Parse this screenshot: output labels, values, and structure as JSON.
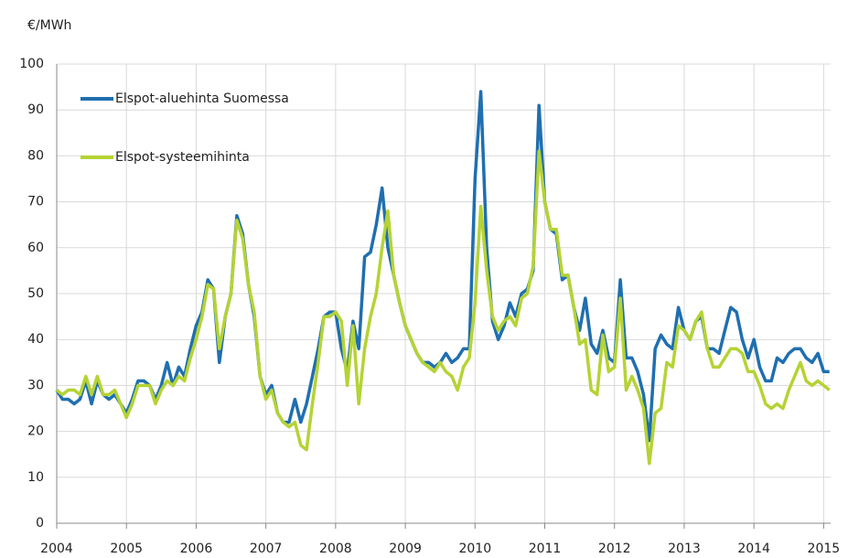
{
  "chart_data": {
    "type": "line",
    "y_label": "€/MWh",
    "x": [
      2004,
      2004.083,
      2004.167,
      2004.25,
      2004.333,
      2004.417,
      2004.5,
      2004.583,
      2004.667,
      2004.75,
      2004.833,
      2004.917,
      2005,
      2005.083,
      2005.167,
      2005.25,
      2005.333,
      2005.417,
      2005.5,
      2005.583,
      2005.667,
      2005.75,
      2005.833,
      2005.917,
      2006,
      2006.083,
      2006.167,
      2006.25,
      2006.333,
      2006.417,
      2006.5,
      2006.583,
      2006.667,
      2006.75,
      2006.833,
      2006.917,
      2007,
      2007.083,
      2007.167,
      2007.25,
      2007.333,
      2007.417,
      2007.5,
      2007.583,
      2007.667,
      2007.75,
      2007.833,
      2007.917,
      2008,
      2008.083,
      2008.167,
      2008.25,
      2008.333,
      2008.417,
      2008.5,
      2008.583,
      2008.667,
      2008.75,
      2008.833,
      2008.917,
      2009,
      2009.083,
      2009.167,
      2009.25,
      2009.333,
      2009.417,
      2009.5,
      2009.583,
      2009.667,
      2009.75,
      2009.833,
      2009.917,
      2010,
      2010.083,
      2010.167,
      2010.25,
      2010.333,
      2010.417,
      2010.5,
      2010.583,
      2010.667,
      2010.75,
      2010.833,
      2010.917,
      2011,
      2011.083,
      2011.167,
      2011.25,
      2011.333,
      2011.417,
      2011.5,
      2011.583,
      2011.667,
      2011.75,
      2011.833,
      2011.917,
      2012,
      2012.083,
      2012.167,
      2012.25,
      2012.333,
      2012.417,
      2012.5,
      2012.583,
      2012.667,
      2012.75,
      2012.833,
      2012.917,
      2013,
      2013.083,
      2013.167,
      2013.25,
      2013.333,
      2013.417,
      2013.5,
      2013.583,
      2013.667,
      2013.75,
      2013.833,
      2013.917,
      2014,
      2014.083,
      2014.167,
      2014.25,
      2014.333,
      2014.417,
      2014.5,
      2014.583,
      2014.667,
      2014.75,
      2014.833,
      2014.917,
      2015,
      2015.083
    ],
    "series": [
      {
        "name": "Elspot-aluehinta Suomessa",
        "color": "#1f6fb0",
        "values": [
          29,
          27,
          27,
          26,
          27,
          31,
          26,
          31,
          28,
          27,
          28,
          26,
          24,
          27,
          31,
          31,
          30,
          27,
          30,
          35,
          30,
          34,
          32,
          38,
          43,
          46,
          53,
          51,
          35,
          45,
          50,
          67,
          63,
          52,
          45,
          32,
          28,
          30,
          24,
          22,
          22,
          27,
          22,
          26,
          32,
          38,
          45,
          46,
          46,
          38,
          33,
          44,
          38,
          58,
          59,
          65,
          73,
          60,
          54,
          48,
          43,
          40,
          37,
          35,
          35,
          34,
          35,
          37,
          35,
          36,
          38,
          38,
          75,
          94,
          60,
          44,
          40,
          43,
          48,
          45,
          50,
          51,
          55,
          91,
          70,
          64,
          63,
          53,
          54,
          47,
          42,
          49,
          39,
          37,
          42,
          36,
          35,
          53,
          36,
          36,
          33,
          28,
          18,
          38,
          41,
          39,
          38,
          47,
          42,
          40,
          44,
          45,
          38,
          38,
          37,
          42,
          47,
          46,
          40,
          36,
          40,
          34,
          31,
          31,
          36,
          35,
          37,
          38,
          38,
          36,
          35,
          37,
          33,
          33
        ]
      },
      {
        "name": "Elspot-systeemihinta",
        "color": "#b5d334",
        "values": [
          29,
          28,
          29,
          29,
          28,
          32,
          28,
          32,
          28,
          28,
          29,
          26,
          23,
          26,
          30,
          30,
          30,
          26,
          29,
          31,
          30,
          32,
          31,
          36,
          40,
          45,
          52,
          51,
          38,
          45,
          50,
          66,
          62,
          52,
          46,
          32,
          27,
          29,
          24,
          22,
          21,
          22,
          17,
          16,
          26,
          35,
          45,
          45,
          46,
          44,
          30,
          43,
          26,
          38,
          45,
          50,
          60,
          68,
          54,
          48,
          43,
          40,
          37,
          35,
          34,
          33,
          35,
          33,
          32,
          29,
          34,
          36,
          48,
          69,
          55,
          45,
          42,
          44,
          45,
          43,
          49,
          50,
          56,
          81,
          70,
          64,
          64,
          54,
          54,
          47,
          39,
          40,
          29,
          28,
          41,
          33,
          34,
          49,
          29,
          32,
          29,
          25,
          13,
          24,
          25,
          35,
          34,
          43,
          42,
          40,
          44,
          46,
          38,
          34,
          34,
          36,
          38,
          38,
          37,
          33,
          33,
          30,
          26,
          25,
          26,
          25,
          29,
          32,
          35,
          31,
          30,
          31,
          30,
          29
        ]
      }
    ],
    "xlim": [
      2004,
      2015.1
    ],
    "xticks": [
      2004,
      2005,
      2006,
      2007,
      2008,
      2009,
      2010,
      2011,
      2012,
      2013,
      2014,
      2015
    ],
    "ylim": [
      0,
      100
    ],
    "yticks": [
      0,
      10,
      20,
      30,
      40,
      50,
      60,
      70,
      80,
      90,
      100
    ],
    "grid": true,
    "legend": "upper left"
  }
}
